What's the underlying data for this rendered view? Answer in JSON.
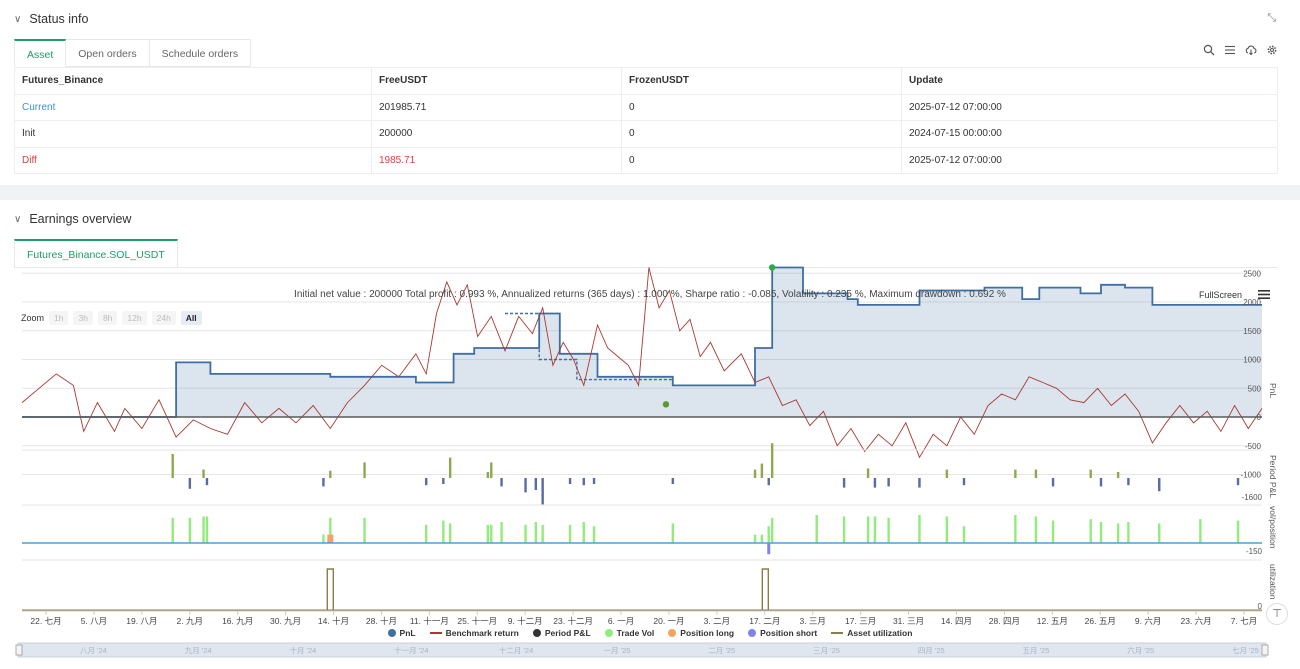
{
  "status": {
    "title": "Status info",
    "tabs": [
      "Asset",
      "Open orders",
      "Schedule orders"
    ],
    "columns": [
      "Futures_Binance",
      "FreeUSDT",
      "FrozenUSDT",
      "Update"
    ],
    "rows": [
      {
        "label": "Current",
        "free": "201985.71",
        "frozen": "0",
        "update": "2025-07-12 07:00:00"
      },
      {
        "label": "Init",
        "free": "200000",
        "frozen": "0",
        "update": "2024-07-15 00:00:00"
      },
      {
        "label": "Diff",
        "free": "1985.71",
        "frozen": "0",
        "update": "2025-07-12 07:00:00"
      }
    ]
  },
  "earnings": {
    "title": "Earnings overview",
    "tab": "Futures_Binance.SOL_USDT",
    "summary": "Initial net value : 200000 Total profit : 0.993 %, Annualized returns (365 days) : 1.000 %, Sharpe ratio : -0.085, Volatility : 0.235 %, Maximum drawdown : 0.692 %",
    "fullscreen": "FullScreen",
    "zoom_label": "Zoom",
    "zoom_options": [
      "1h",
      "3h",
      "8h",
      "12h",
      "24h",
      "All"
    ]
  },
  "colors": {
    "accent": "#1aa063",
    "pnl": "#3f6ea3",
    "benchmark": "#a83a32",
    "period": "#333333",
    "trade_vol": "#90ed7d",
    "pos_long": "#f7a35c",
    "pos_short": "#8085e9",
    "asset_util": "#8b7d4a"
  },
  "chart_data": {
    "type": "line",
    "x_ticks": [
      "22. 七月",
      "5. 八月",
      "19. 八月",
      "2. 九月",
      "16. 九月",
      "30. 九月",
      "14. 十月",
      "28. 十月",
      "11. 十一月",
      "25. 十一月",
      "9. 十二月",
      "23. 十二月",
      "6. 一月",
      "20. 一月",
      "3. 二月",
      "17. 二月",
      "3. 三月",
      "17. 三月",
      "31. 三月",
      "14. 四月",
      "28. 四月",
      "12. 五月",
      "26. 五月",
      "9. 六月",
      "23. 六月",
      "7. 七月"
    ],
    "navigator_labels": [
      "八月 '24",
      "九月 '24",
      "十月 '24",
      "十一月 '24",
      "十二月 '24",
      "一月 '25",
      "二月 '25",
      "三月 '25",
      "四月 '25",
      "五月 '25",
      "六月 '25",
      "七月 '25"
    ],
    "pnl_axis": {
      "ticks": [
        "2500",
        "2000",
        "1500",
        "1000",
        "500",
        "0",
        "-500",
        "-1000"
      ],
      "label": "PnL"
    },
    "period_axis": {
      "ticks": [
        "-1600"
      ],
      "label": "Period P&L"
    },
    "vol_axis": {
      "ticks": [
        "-150"
      ],
      "label": "vol/position"
    },
    "util_axis": {
      "ticks": [
        "0"
      ],
      "label": "utilization"
    },
    "legend": [
      "PnL",
      "Benchmark return",
      "Period P&L",
      "Trade Vol",
      "Position long",
      "Position short",
      "Asset utilization"
    ],
    "pnl_steps": [
      [
        0,
        0
      ],
      [
        45,
        0
      ],
      [
        45,
        950
      ],
      [
        55,
        950
      ],
      [
        55,
        750
      ],
      [
        90,
        750
      ],
      [
        90,
        700
      ],
      [
        115,
        700
      ],
      [
        115,
        600
      ],
      [
        126,
        600
      ],
      [
        126,
        1100
      ],
      [
        132,
        1100
      ],
      [
        132,
        1200
      ],
      [
        151,
        1200
      ],
      [
        151,
        1800
      ],
      [
        157,
        1800
      ],
      [
        157,
        1100
      ],
      [
        168,
        1100
      ],
      [
        168,
        700
      ],
      [
        190,
        700
      ],
      [
        190,
        550
      ],
      [
        214,
        550
      ],
      [
        214,
        1200
      ],
      [
        219,
        1200
      ],
      [
        219,
        2600
      ],
      [
        228,
        2600
      ],
      [
        228,
        2150
      ],
      [
        241,
        2150
      ],
      [
        241,
        2050
      ],
      [
        244,
        2050
      ],
      [
        244,
        1950
      ],
      [
        262,
        1950
      ],
      [
        262,
        2200
      ],
      [
        281,
        2200
      ],
      [
        281,
        2250
      ],
      [
        292,
        2250
      ],
      [
        292,
        2050
      ],
      [
        297,
        2050
      ],
      [
        297,
        2250
      ],
      [
        309,
        2250
      ],
      [
        309,
        2150
      ],
      [
        315,
        2150
      ],
      [
        315,
        2300
      ],
      [
        322,
        2300
      ],
      [
        322,
        2250
      ],
      [
        330,
        2250
      ],
      [
        330,
        1950
      ],
      [
        362,
        1950
      ]
    ],
    "pnl_dashed": [
      [
        141,
        1800
      ],
      [
        151,
        1800
      ],
      [
        151,
        1000
      ],
      [
        162,
        1000
      ],
      [
        162,
        650
      ],
      [
        190,
        650
      ]
    ],
    "benchmark": [
      [
        0,
        250
      ],
      [
        5,
        500
      ],
      [
        10,
        750
      ],
      [
        15,
        550
      ],
      [
        18,
        -250
      ],
      [
        22,
        250
      ],
      [
        27,
        -250
      ],
      [
        30,
        150
      ],
      [
        35,
        -200
      ],
      [
        40,
        300
      ],
      [
        45,
        -350
      ],
      [
        50,
        -50
      ],
      [
        55,
        -200
      ],
      [
        60,
        -300
      ],
      [
        65,
        250
      ],
      [
        70,
        -100
      ],
      [
        75,
        150
      ],
      [
        80,
        -100
      ],
      [
        85,
        200
      ],
      [
        90,
        -200
      ],
      [
        95,
        250
      ],
      [
        100,
        550
      ],
      [
        105,
        900
      ],
      [
        110,
        700
      ],
      [
        115,
        1100
      ],
      [
        118,
        750
      ],
      [
        121,
        1800
      ],
      [
        124,
        2350
      ],
      [
        127,
        1950
      ],
      [
        130,
        2300
      ],
      [
        133,
        1400
      ],
      [
        137,
        1750
      ],
      [
        141,
        1150
      ],
      [
        145,
        1750
      ],
      [
        149,
        1450
      ],
      [
        152,
        1900
      ],
      [
        155,
        900
      ],
      [
        158,
        1300
      ],
      [
        161,
        1000
      ],
      [
        164,
        550
      ],
      [
        168,
        1600
      ],
      [
        171,
        1200
      ],
      [
        174,
        1050
      ],
      [
        177,
        900
      ],
      [
        180,
        550
      ],
      [
        183,
        2600
      ],
      [
        186,
        1900
      ],
      [
        189,
        2200
      ],
      [
        192,
        1500
      ],
      [
        195,
        1700
      ],
      [
        198,
        1050
      ],
      [
        201,
        1300
      ],
      [
        205,
        800
      ],
      [
        210,
        1100
      ],
      [
        214,
        600
      ],
      [
        218,
        700
      ],
      [
        222,
        200
      ],
      [
        226,
        300
      ],
      [
        230,
        -150
      ],
      [
        234,
        100
      ],
      [
        238,
        -500
      ],
      [
        242,
        -200
      ],
      [
        246,
        -600
      ],
      [
        250,
        -300
      ],
      [
        254,
        -500
      ],
      [
        258,
        -100
      ],
      [
        262,
        -700
      ],
      [
        266,
        -300
      ],
      [
        270,
        -500
      ],
      [
        274,
        0
      ],
      [
        278,
        -300
      ],
      [
        282,
        200
      ],
      [
        286,
        400
      ],
      [
        290,
        300
      ],
      [
        294,
        700
      ],
      [
        298,
        600
      ],
      [
        302,
        500
      ],
      [
        306,
        300
      ],
      [
        310,
        250
      ],
      [
        314,
        500
      ],
      [
        318,
        200
      ],
      [
        322,
        400
      ],
      [
        326,
        100
      ],
      [
        330,
        -450
      ],
      [
        334,
        -100
      ],
      [
        338,
        200
      ],
      [
        342,
        -100
      ],
      [
        346,
        100
      ],
      [
        350,
        -250
      ],
      [
        354,
        200
      ],
      [
        358,
        -200
      ],
      [
        362,
        150
      ]
    ],
    "period_bars": [
      [
        44,
        1.0
      ],
      [
        49,
        -0.45
      ],
      [
        53,
        0.35
      ],
      [
        54,
        -0.3
      ],
      [
        88,
        -0.35
      ],
      [
        90,
        0.3
      ],
      [
        100,
        0.65
      ],
      [
        118,
        -0.3
      ],
      [
        123,
        -0.25
      ],
      [
        125,
        0.85
      ],
      [
        136,
        0.25
      ],
      [
        137,
        0.65
      ],
      [
        140,
        -0.35
      ],
      [
        147,
        -0.6
      ],
      [
        150,
        -0.5
      ],
      [
        152,
        -1.1
      ],
      [
        160,
        -0.25
      ],
      [
        164,
        -0.3
      ],
      [
        167,
        -0.25
      ],
      [
        190,
        -0.25
      ],
      [
        214,
        0.35
      ],
      [
        216,
        0.6
      ],
      [
        218,
        -0.3
      ],
      [
        219,
        1.45
      ],
      [
        240,
        -0.4
      ],
      [
        247,
        0.4
      ],
      [
        249,
        -0.4
      ],
      [
        253,
        -0.35
      ],
      [
        262,
        -0.4
      ],
      [
        270,
        0.35
      ],
      [
        275,
        -0.3
      ],
      [
        290,
        0.35
      ],
      [
        296,
        0.35
      ],
      [
        301,
        -0.35
      ],
      [
        312,
        0.35
      ],
      [
        315,
        -0.35
      ],
      [
        320,
        0.25
      ],
      [
        323,
        -0.3
      ],
      [
        332,
        -0.55
      ],
      [
        355,
        -0.3
      ]
    ],
    "vol_bars": [
      [
        44,
        0.9
      ],
      [
        49,
        0.9
      ],
      [
        53,
        0.95
      ],
      [
        54,
        0.95
      ],
      [
        88,
        0.3
      ],
      [
        90,
        0.9
      ],
      [
        100,
        0.9
      ],
      [
        118,
        0.65
      ],
      [
        123,
        0.8
      ],
      [
        125,
        0.7
      ],
      [
        136,
        0.65
      ],
      [
        137,
        0.65
      ],
      [
        140,
        0.75
      ],
      [
        147,
        0.65
      ],
      [
        150,
        0.75
      ],
      [
        152,
        0.65
      ],
      [
        160,
        0.65
      ],
      [
        164,
        0.75
      ],
      [
        167,
        0.6
      ],
      [
        190,
        0.7
      ],
      [
        214,
        0.3
      ],
      [
        216,
        0.3
      ],
      [
        218,
        0.6
      ],
      [
        219,
        0.9
      ],
      [
        232,
        1.0
      ],
      [
        240,
        0.95
      ],
      [
        247,
        0.95
      ],
      [
        249,
        0.95
      ],
      [
        253,
        0.9
      ],
      [
        262,
        1.0
      ],
      [
        270,
        0.95
      ],
      [
        275,
        0.6
      ],
      [
        290,
        1.0
      ],
      [
        296,
        0.95
      ],
      [
        301,
        0.8
      ],
      [
        312,
        0.85
      ],
      [
        315,
        0.75
      ],
      [
        320,
        0.7
      ],
      [
        323,
        0.75
      ],
      [
        332,
        0.7
      ],
      [
        344,
        0.85
      ],
      [
        355,
        0.8
      ]
    ],
    "pos_long": [
      [
        90,
        0.3
      ]
    ],
    "pos_short": [
      [
        218,
        -0.4
      ]
    ],
    "util_spikes": [
      [
        90,
        1.0
      ],
      [
        217,
        1.0
      ]
    ]
  }
}
